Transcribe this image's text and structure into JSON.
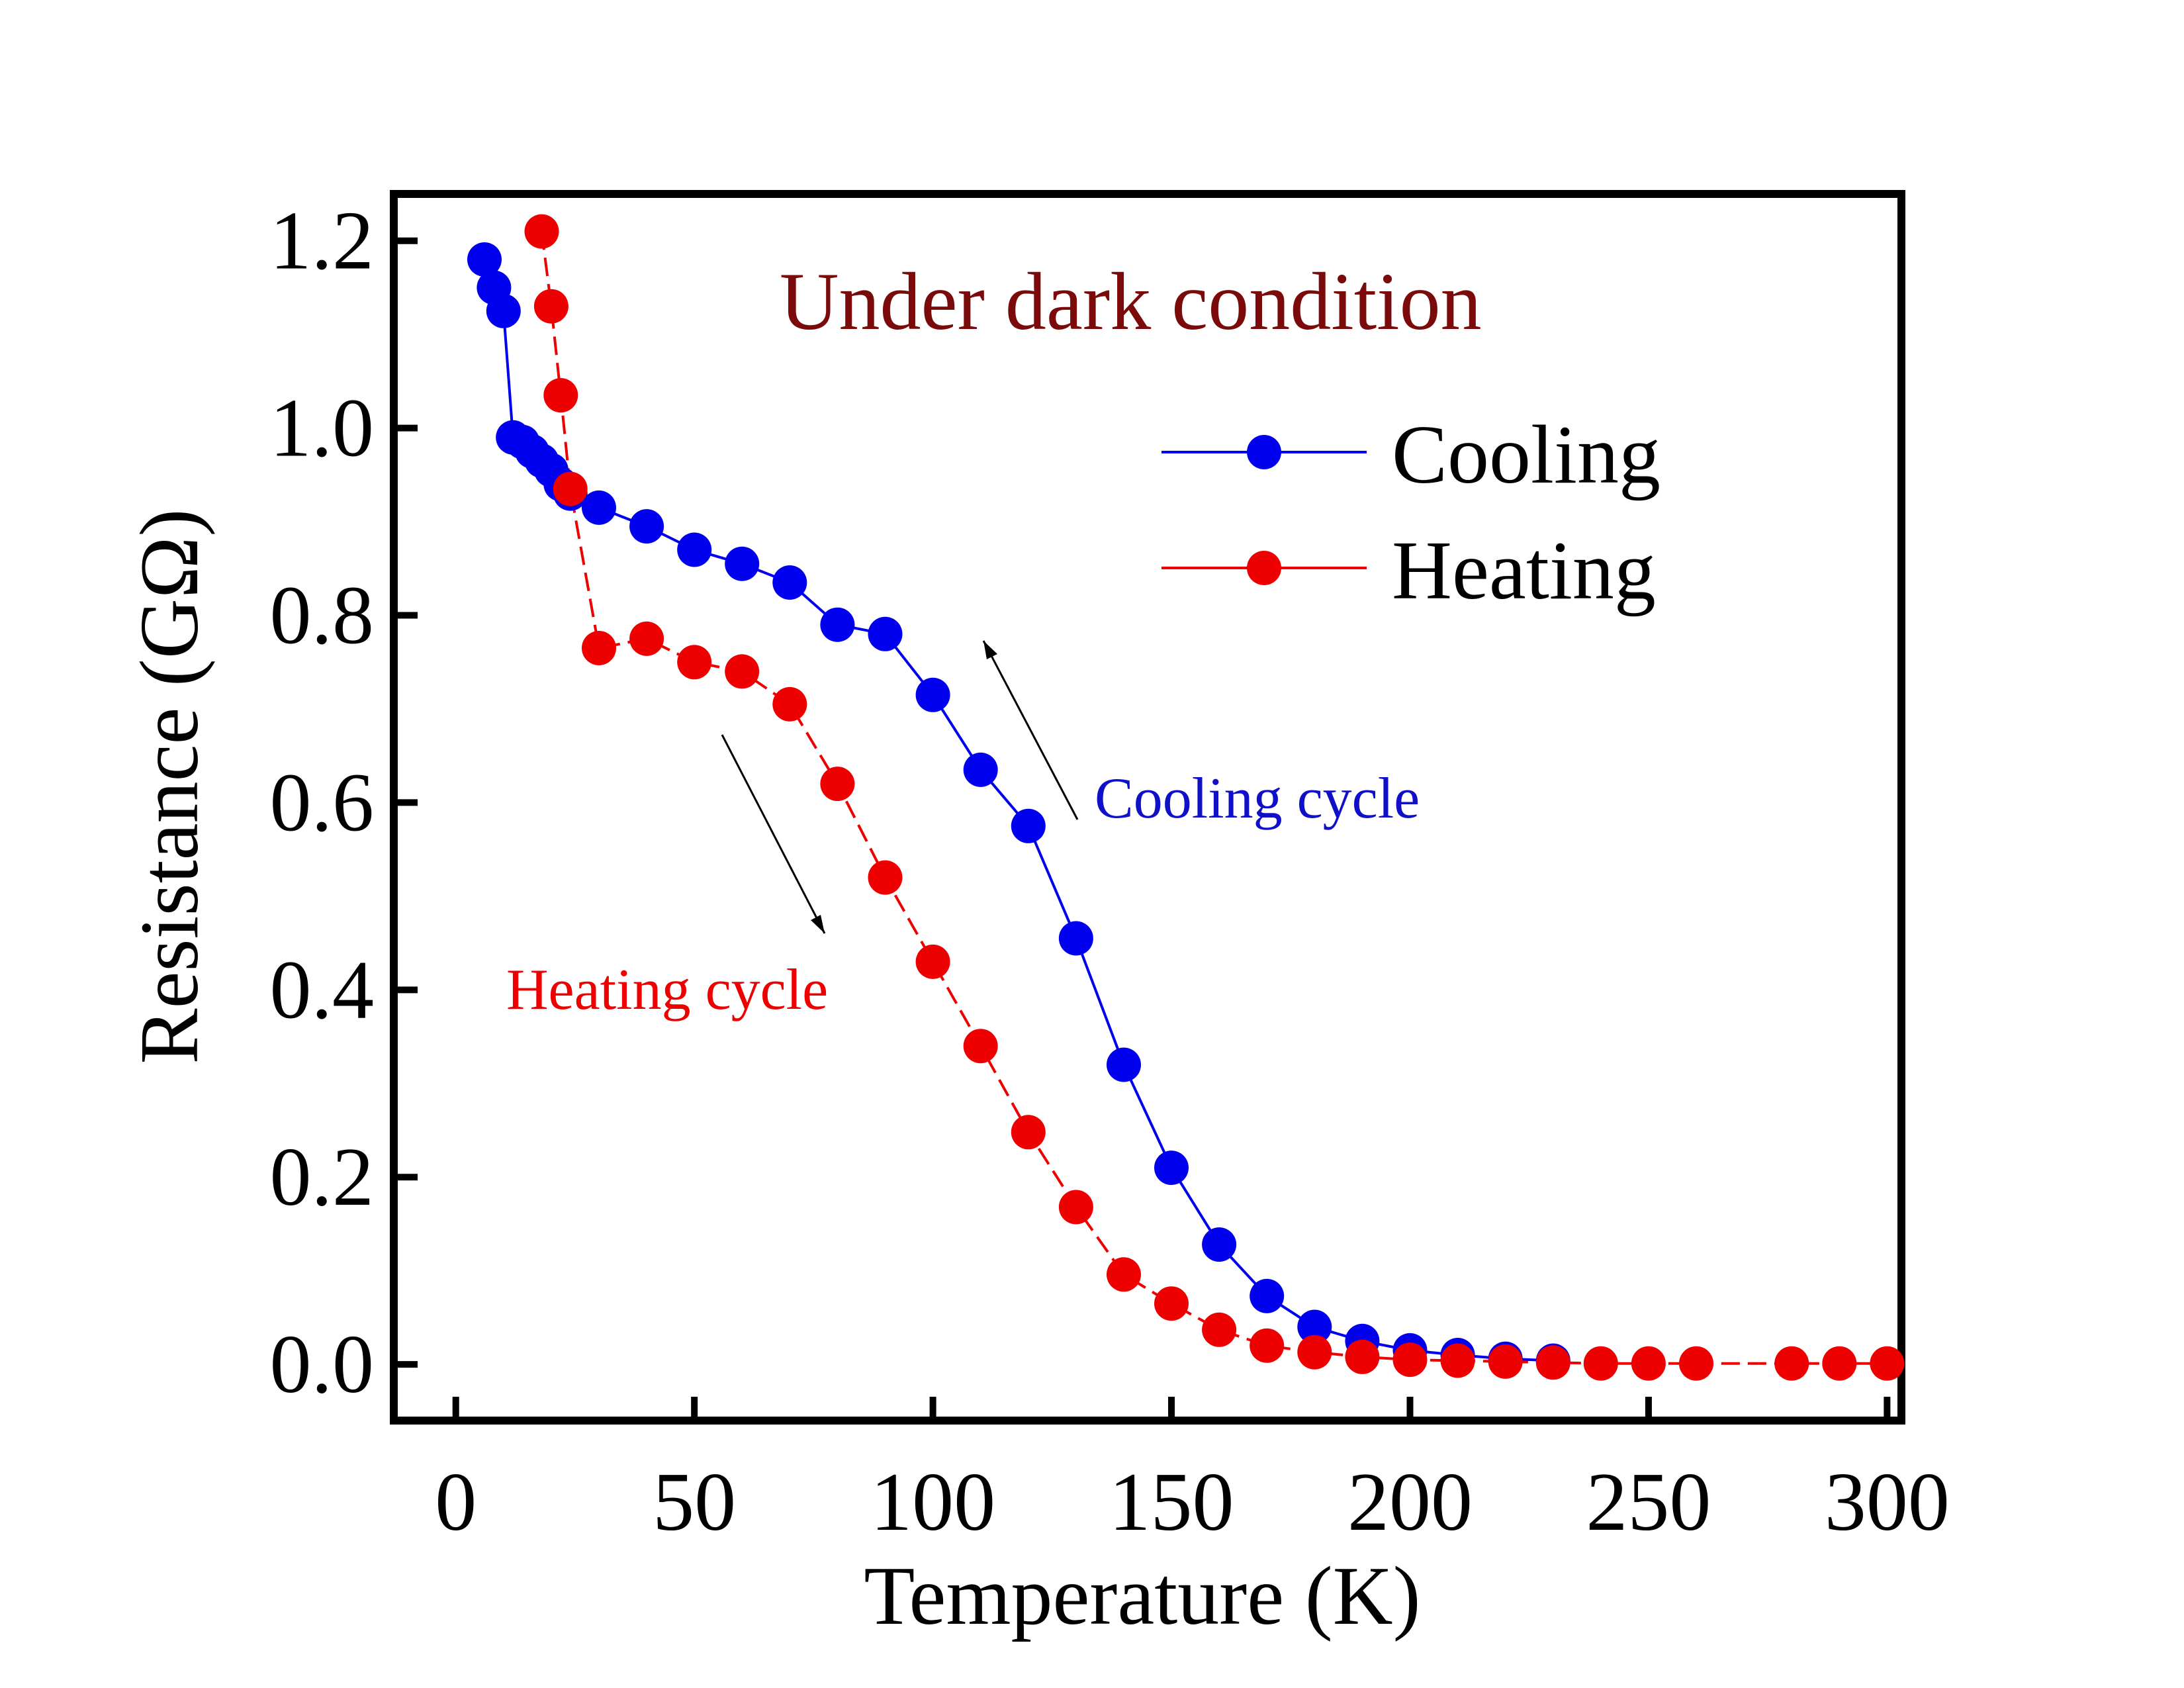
{
  "chart_data": {
    "type": "line",
    "title": "",
    "xlabel": "Temperature (K)",
    "ylabel": "Resistance (GΩ)",
    "xlim": [
      -13,
      303
    ],
    "ylim": [
      -0.06,
      1.25
    ],
    "xticks": [
      0,
      50,
      100,
      150,
      200,
      250,
      300
    ],
    "xtick_labels": [
      "0",
      "50",
      "100",
      "150",
      "200",
      "250",
      "300"
    ],
    "yticks": [
      0.0,
      0.2,
      0.4,
      0.6,
      0.8,
      1.0,
      1.2
    ],
    "ytick_labels": [
      "0.0",
      "0.2",
      "0.4",
      "0.6",
      "0.8",
      "1.0",
      "1.2"
    ],
    "grid": false,
    "legend_position": "top-right",
    "annotations": {
      "condition": "Under dark condition",
      "cooling": "Cooling cycle",
      "heating": "Heating cycle"
    },
    "series": [
      {
        "name": "Cooling",
        "color": "#0000ee",
        "dash": "solid",
        "x": [
          6,
          8,
          10,
          12,
          14,
          16,
          18,
          20,
          22,
          24,
          30,
          40,
          50,
          60,
          70,
          80,
          90,
          100,
          110,
          120,
          130,
          140,
          150,
          160,
          170,
          180,
          190,
          200,
          210,
          220,
          230
        ],
        "y": [
          1.18,
          1.15,
          1.125,
          0.99,
          0.985,
          0.975,
          0.965,
          0.955,
          0.94,
          0.93,
          0.915,
          0.895,
          0.87,
          0.855,
          0.835,
          0.79,
          0.78,
          0.715,
          0.635,
          0.575,
          0.455,
          0.32,
          0.21,
          0.128,
          0.073,
          0.04,
          0.025,
          0.015,
          0.01,
          0.006,
          0.004
        ]
      },
      {
        "name": "Heating",
        "color": "#ee0000",
        "dash": "dashed",
        "x": [
          18,
          20,
          22,
          24,
          30,
          40,
          50,
          60,
          70,
          80,
          90,
          100,
          110,
          120,
          130,
          140,
          150,
          160,
          170,
          180,
          190,
          200,
          210,
          220,
          230,
          240,
          250,
          260,
          280,
          290,
          300
        ],
        "y": [
          1.21,
          1.13,
          1.035,
          0.935,
          0.765,
          0.775,
          0.75,
          0.74,
          0.705,
          0.62,
          0.52,
          0.43,
          0.34,
          0.248,
          0.168,
          0.096,
          0.065,
          0.037,
          0.02,
          0.013,
          0.008,
          0.005,
          0.004,
          0.003,
          0.002,
          0.001,
          0.001,
          0.001,
          0.001,
          0.001,
          0.001
        ]
      }
    ]
  },
  "colors": {
    "frame": "#000000",
    "condition_text": "#7b0a0a",
    "cooling": "#0000ee",
    "heating": "#ee0000"
  }
}
